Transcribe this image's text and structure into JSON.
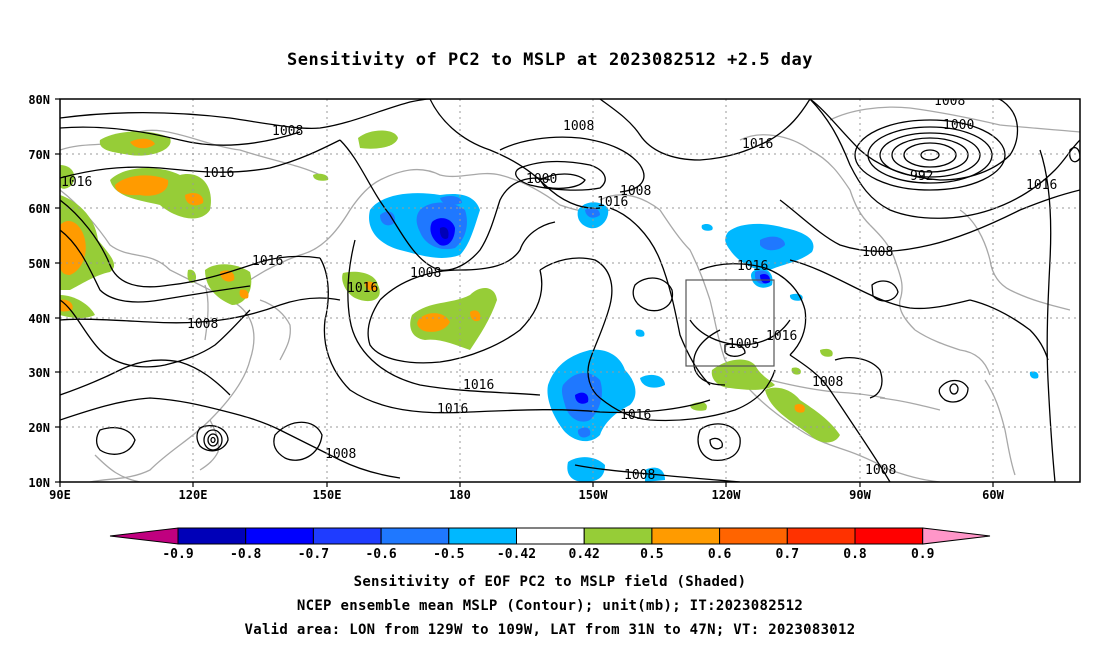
{
  "title": "Sensitivity of PC2 to MSLP at 2023082512 +2.5 day",
  "map": {
    "lat_ticks": [
      "80N",
      "70N",
      "60N",
      "50N",
      "40N",
      "30N",
      "20N",
      "10N"
    ],
    "lon_ticks": [
      "90E",
      "120E",
      "150E",
      "180",
      "150W",
      "120W",
      "90W",
      "60W"
    ],
    "valid_box": {
      "lon_from": "129W",
      "lon_to": "109W",
      "lat_from": "31N",
      "lat_to": "47N"
    }
  },
  "contour_labels": [
    "1008",
    "1008",
    "1016",
    "1016",
    "1016",
    "1016",
    "1008",
    "1000",
    "1008",
    "1016",
    "1008",
    "1016",
    "1016",
    "1016",
    "1016",
    "1008",
    "1005",
    "1016",
    "1008",
    "1008",
    "1008",
    "1008",
    "1016",
    "1000",
    "992",
    "1008",
    "1016"
  ],
  "colorbar": {
    "ticks": [
      "-0.9",
      "-0.8",
      "-0.7",
      "-0.6",
      "-0.5",
      "-0.42",
      "0.42",
      "0.5",
      "0.6",
      "0.7",
      "0.8",
      "0.9"
    ],
    "colors": [
      "#c0007f",
      "#0000b8",
      "#0000ff",
      "#1f3cff",
      "#1f78ff",
      "#00b8ff",
      "#ffffff",
      "#96cd37",
      "#ff9b00",
      "#ff6400",
      "#ff3200",
      "#ff0000",
      "#ff96c8"
    ]
  },
  "caption": {
    "line1": "Sensitivity of EOF PC2 to MSLP field (Shaded)",
    "line2": "NCEP ensemble mean MSLP (Contour); unit(mb); IT:2023082512",
    "line3": "Valid area: LON from 129W to 109W, LAT from 31N to 47N; VT: 2023083012"
  }
}
